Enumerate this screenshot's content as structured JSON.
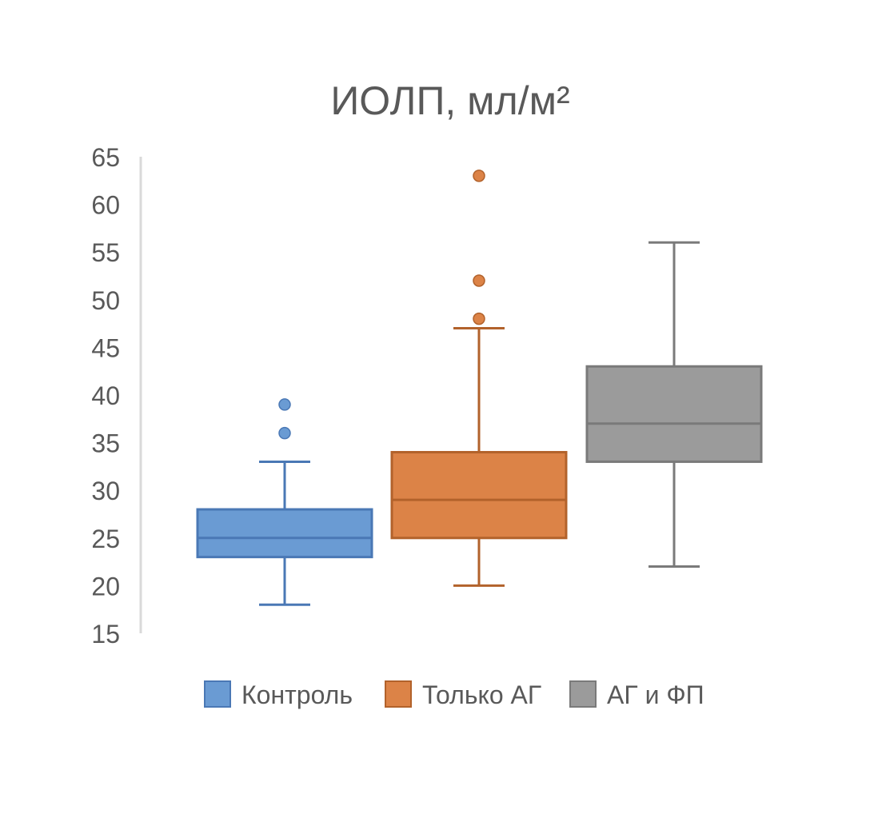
{
  "chart_data": {
    "type": "box",
    "title": "ИОЛП, мл/м²",
    "xlabel": "",
    "ylabel": "",
    "ylim": [
      15,
      65
    ],
    "yticks": [
      "15",
      "20",
      "25",
      "30",
      "35",
      "40",
      "45",
      "50",
      "55",
      "60",
      "65"
    ],
    "grid": false,
    "legend_position": "bottom",
    "series": [
      {
        "name": "Контроль",
        "color": "#6a9bd3",
        "edge_color": "#4a78b5",
        "whisker_low": 18,
        "q1": 23,
        "median": 25,
        "q3": 28,
        "whisker_high": 33,
        "outliers": [
          36,
          39
        ]
      },
      {
        "name": "Только АГ",
        "color": "#dc8347",
        "edge_color": "#b2622b",
        "whisker_low": 20,
        "q1": 25,
        "median": 29,
        "q3": 34,
        "whisker_high": 47,
        "outliers": [
          48,
          52,
          63
        ]
      },
      {
        "name": "АГ и ФП",
        "color": "#9b9b9b",
        "edge_color": "#7a7a7a",
        "whisker_low": 22,
        "q1": 33,
        "median": 37,
        "q3": 43,
        "whisker_high": 56,
        "outliers": []
      }
    ]
  }
}
